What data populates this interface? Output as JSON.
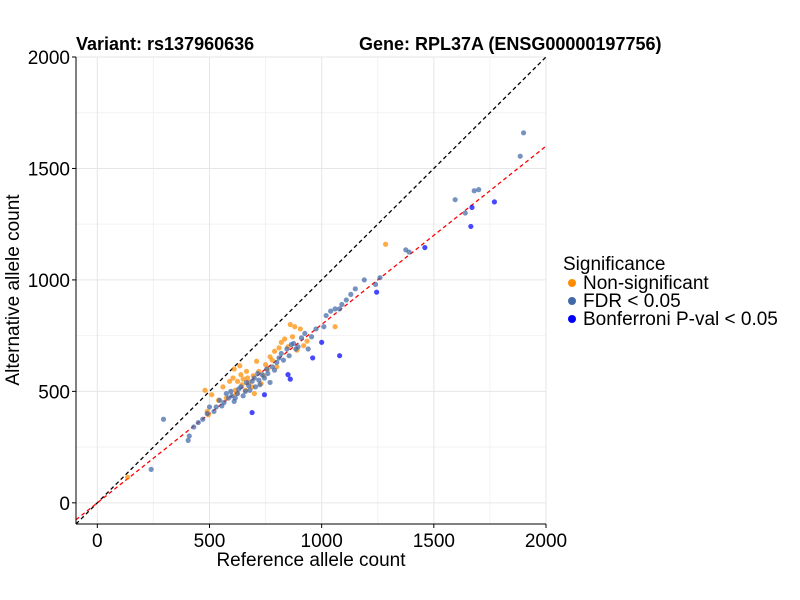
{
  "chart_data": {
    "type": "scatter",
    "title_left": "Variant: rs137960636",
    "title_right": "Gene: RPL37A (ENSG00000197756)",
    "xlabel": "Reference allele count",
    "ylabel": "Alternative allele count",
    "xlim": [
      -95,
      2000
    ],
    "ylim": [
      -95,
      2000
    ],
    "xticks": [
      0,
      500,
      1000,
      1500,
      2000
    ],
    "yticks": [
      0,
      500,
      1000,
      1500,
      2000
    ],
    "grid": true,
    "reference_lines": [
      {
        "name": "identity",
        "slope": 1.0,
        "intercept": 0,
        "color": "#000000",
        "style": "dashed"
      },
      {
        "name": "fit",
        "slope": 0.8,
        "intercept": 0,
        "color": "#ff0000",
        "style": "dashed"
      }
    ],
    "legend": {
      "title": "Significance",
      "position": "right",
      "entries": [
        {
          "label": "Non-significant",
          "color": "#ff8c00"
        },
        {
          "label": "FDR < 0.05",
          "color": "#4169a8"
        },
        {
          "label": "Bonferroni P-val < 0.05",
          "color": "#0000ff"
        }
      ]
    },
    "series": [
      {
        "name": "Non-significant",
        "color": "#ff8c00",
        "points": [
          [
            135,
            115
          ],
          [
            480,
            505
          ],
          [
            510,
            485
          ],
          [
            490,
            410
          ],
          [
            495,
            395
          ],
          [
            540,
            460
          ],
          [
            560,
            520
          ],
          [
            575,
            470
          ],
          [
            590,
            545
          ],
          [
            605,
            560
          ],
          [
            610,
            600
          ],
          [
            615,
            505
          ],
          [
            620,
            490
          ],
          [
            625,
            545
          ],
          [
            635,
            615
          ],
          [
            640,
            575
          ],
          [
            645,
            530
          ],
          [
            650,
            555
          ],
          [
            660,
            505
          ],
          [
            665,
            590
          ],
          [
            670,
            560
          ],
          [
            675,
            540
          ],
          [
            690,
            520
          ],
          [
            695,
            570
          ],
          [
            700,
            490
          ],
          [
            710,
            635
          ],
          [
            720,
            590
          ],
          [
            730,
            535
          ],
          [
            740,
            570
          ],
          [
            750,
            620
          ],
          [
            760,
            600
          ],
          [
            770,
            655
          ],
          [
            780,
            640
          ],
          [
            790,
            680
          ],
          [
            800,
            610
          ],
          [
            810,
            695
          ],
          [
            820,
            720
          ],
          [
            835,
            735
          ],
          [
            850,
            700
          ],
          [
            860,
            800
          ],
          [
            870,
            745
          ],
          [
            880,
            790
          ],
          [
            890,
            685
          ],
          [
            905,
            780
          ],
          [
            920,
            705
          ],
          [
            935,
            725
          ],
          [
            1060,
            790
          ],
          [
            1285,
            1160
          ]
        ]
      },
      {
        "name": "FDR < 0.05",
        "color": "#4169a8",
        "points": [
          [
            240,
            150
          ],
          [
            295,
            375
          ],
          [
            405,
            280
          ],
          [
            410,
            300
          ],
          [
            430,
            340
          ],
          [
            450,
            360
          ],
          [
            470,
            375
          ],
          [
            490,
            400
          ],
          [
            500,
            430
          ],
          [
            520,
            410
          ],
          [
            530,
            430
          ],
          [
            545,
            460
          ],
          [
            555,
            435
          ],
          [
            565,
            450
          ],
          [
            575,
            490
          ],
          [
            585,
            470
          ],
          [
            595,
            500
          ],
          [
            600,
            480
          ],
          [
            610,
            455
          ],
          [
            615,
            470
          ],
          [
            625,
            490
          ],
          [
            630,
            510
          ],
          [
            640,
            520
          ],
          [
            650,
            480
          ],
          [
            660,
            500
          ],
          [
            665,
            540
          ],
          [
            675,
            525
          ],
          [
            680,
            505
          ],
          [
            690,
            545
          ],
          [
            700,
            560
          ],
          [
            705,
            520
          ],
          [
            715,
            580
          ],
          [
            720,
            550
          ],
          [
            725,
            530
          ],
          [
            735,
            575
          ],
          [
            745,
            560
          ],
          [
            755,
            600
          ],
          [
            760,
            580
          ],
          [
            770,
            540
          ],
          [
            780,
            610
          ],
          [
            790,
            595
          ],
          [
            800,
            630
          ],
          [
            810,
            650
          ],
          [
            820,
            670
          ],
          [
            830,
            640
          ],
          [
            845,
            690
          ],
          [
            855,
            660
          ],
          [
            865,
            710
          ],
          [
            875,
            715
          ],
          [
            885,
            690
          ],
          [
            895,
            700
          ],
          [
            910,
            740
          ],
          [
            925,
            760
          ],
          [
            940,
            690
          ],
          [
            955,
            745
          ],
          [
            975,
            780
          ],
          [
            1010,
            790
          ],
          [
            1020,
            840
          ],
          [
            1040,
            860
          ],
          [
            1060,
            870
          ],
          [
            1080,
            870
          ],
          [
            1090,
            890
          ],
          [
            1110,
            910
          ],
          [
            1130,
            935
          ],
          [
            1150,
            960
          ],
          [
            1190,
            1000
          ],
          [
            1240,
            980
          ],
          [
            1260,
            1010
          ],
          [
            1375,
            1135
          ],
          [
            1390,
            1125
          ],
          [
            1595,
            1360
          ],
          [
            1640,
            1300
          ],
          [
            1680,
            1400
          ],
          [
            1700,
            1405
          ],
          [
            1885,
            1555
          ],
          [
            1900,
            1660
          ]
        ]
      },
      {
        "name": "Bonferroni P-val < 0.05",
        "color": "#0000ff",
        "points": [
          [
            690,
            405
          ],
          [
            745,
            485
          ],
          [
            850,
            575
          ],
          [
            860,
            555
          ],
          [
            960,
            650
          ],
          [
            1000,
            720
          ],
          [
            1080,
            660
          ],
          [
            1245,
            945
          ],
          [
            1460,
            1145
          ],
          [
            1665,
            1240
          ],
          [
            1670,
            1325
          ],
          [
            1770,
            1350
          ]
        ]
      }
    ]
  }
}
